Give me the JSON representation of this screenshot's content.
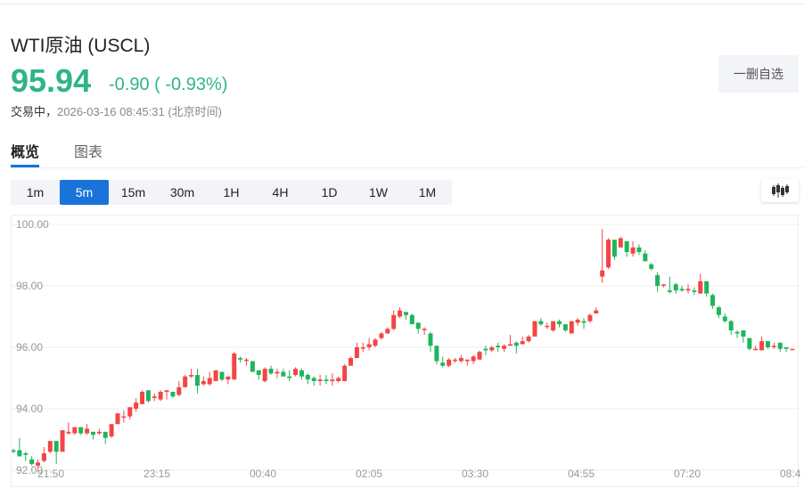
{
  "header": {
    "title": "WTI原油  (USCL)",
    "price": "95.94",
    "change": "-0.90 ( -0.93%)",
    "status_label": "交易中，",
    "timestamp": "2026-03-16 08:45:31  (北京时间)",
    "price_color": "#2fb48a"
  },
  "actions": {
    "remove_watchlist_label": "一删自选"
  },
  "tabs": [
    {
      "label": "概览",
      "active": true
    },
    {
      "label": "图表",
      "active": false
    }
  ],
  "periods": [
    {
      "label": "1m",
      "active": false
    },
    {
      "label": "5m",
      "active": true
    },
    {
      "label": "15m",
      "active": false
    },
    {
      "label": "30m",
      "active": false
    },
    {
      "label": "1H",
      "active": false
    },
    {
      "label": "4H",
      "active": false
    },
    {
      "label": "1D",
      "active": false
    },
    {
      "label": "1W",
      "active": false
    },
    {
      "label": "1M",
      "active": false
    }
  ],
  "chart_type_icon": "candlestick-icon",
  "colors": {
    "up": "#f44545",
    "down": "#1fb55c",
    "accent": "#1a73d9",
    "grid": "#eeeeee"
  },
  "chart_data": {
    "type": "candlestick",
    "title": "WTI原油 (USCL) 5m",
    "interval": "5m",
    "xlabel": "",
    "ylabel": "",
    "ylim": [
      92.0,
      100.0
    ],
    "y_ticks": [
      "100.00",
      "98.00",
      "96.00",
      "94.00",
      "92.00"
    ],
    "x_ticks": [
      "21:50",
      "23:15",
      "00:40",
      "02:05",
      "03:30",
      "04:55",
      "07:20",
      "08:4"
    ],
    "grid": true,
    "legend": null,
    "color_convention": "red = up, green = down",
    "candles": [
      [
        92.65,
        92.6,
        92.7,
        92.55
      ],
      [
        92.65,
        92.45,
        93.05,
        92.45
      ],
      [
        92.55,
        92.5,
        92.6,
        92.3
      ],
      [
        92.35,
        92.2,
        92.45,
        92.15
      ],
      [
        92.15,
        92.25,
        92.35,
        92.05
      ],
      [
        92.3,
        92.55,
        92.75,
        92.25
      ],
      [
        92.6,
        92.95,
        92.95,
        92.55
      ],
      [
        92.95,
        92.6,
        92.95,
        92.2
      ],
      [
        92.6,
        93.3,
        93.3,
        92.6
      ],
      [
        93.2,
        93.25,
        93.55,
        93.15
      ],
      [
        93.2,
        93.4,
        93.4,
        93.15
      ],
      [
        93.4,
        93.2,
        93.4,
        93.15
      ],
      [
        93.2,
        93.35,
        93.5,
        93.15
      ],
      [
        93.25,
        93.15,
        93.25,
        93.0
      ],
      [
        93.2,
        93.25,
        93.35,
        93.15
      ],
      [
        93.25,
        93.05,
        93.25,
        92.85
      ],
      [
        93.1,
        93.5,
        93.5,
        93.05
      ],
      [
        93.5,
        93.85,
        93.85,
        93.5
      ],
      [
        93.75,
        93.75,
        93.95,
        93.55
      ],
      [
        93.75,
        94.05,
        94.05,
        93.65
      ],
      [
        94.0,
        94.2,
        94.35,
        93.9
      ],
      [
        94.15,
        94.55,
        94.6,
        94.15
      ],
      [
        94.6,
        94.25,
        94.6,
        94.2
      ],
      [
        94.35,
        94.4,
        94.5,
        94.25
      ],
      [
        94.3,
        94.55,
        94.6,
        94.25
      ],
      [
        94.55,
        94.6,
        94.6,
        94.3
      ],
      [
        94.55,
        94.4,
        94.55,
        94.35
      ],
      [
        94.45,
        94.7,
        94.9,
        94.4
      ],
      [
        94.7,
        95.05,
        95.1,
        94.7
      ],
      [
        95.05,
        95.1,
        95.3,
        95.0
      ],
      [
        95.1,
        94.75,
        95.3,
        94.5
      ],
      [
        94.8,
        94.9,
        95.05,
        94.75
      ],
      [
        94.8,
        95.0,
        95.2,
        94.75
      ],
      [
        94.9,
        95.25,
        95.25,
        94.9
      ],
      [
        95.2,
        94.95,
        95.2,
        94.9
      ],
      [
        94.95,
        95.05,
        95.05,
        94.8
      ],
      [
        94.95,
        95.8,
        95.85,
        94.95
      ],
      [
        95.65,
        95.6,
        95.7,
        95.5
      ],
      [
        95.6,
        95.6,
        95.65,
        95.4
      ],
      [
        95.55,
        95.2,
        95.55,
        95.2
      ],
      [
        95.25,
        95.1,
        95.25,
        94.95
      ],
      [
        94.9,
        95.3,
        95.35,
        94.85
      ],
      [
        95.3,
        95.15,
        95.4,
        95.1
      ],
      [
        95.15,
        95.2,
        95.3,
        95.0
      ],
      [
        95.2,
        95.05,
        95.3,
        95.05
      ],
      [
        95.05,
        95.0,
        95.25,
        94.9
      ],
      [
        95.1,
        95.3,
        95.35,
        95.05
      ],
      [
        95.25,
        95.05,
        95.3,
        94.95
      ],
      [
        95.1,
        94.95,
        95.15,
        94.8
      ],
      [
        95.0,
        94.9,
        95.05,
        94.75
      ],
      [
        94.9,
        94.95,
        95.1,
        94.75
      ],
      [
        94.95,
        94.9,
        95.1,
        94.8
      ],
      [
        94.9,
        94.95,
        95.15,
        94.75
      ],
      [
        94.9,
        95.0,
        95.05,
        94.85
      ],
      [
        94.9,
        95.4,
        95.45,
        94.9
      ],
      [
        95.4,
        95.65,
        95.7,
        95.4
      ],
      [
        95.65,
        96.0,
        96.15,
        95.65
      ],
      [
        96.0,
        96.0,
        96.15,
        95.85
      ],
      [
        96.0,
        96.1,
        96.3,
        95.9
      ],
      [
        96.05,
        96.25,
        96.3,
        96.0
      ],
      [
        96.3,
        96.45,
        96.5,
        96.25
      ],
      [
        96.45,
        96.6,
        96.65,
        96.45
      ],
      [
        96.6,
        97.05,
        97.2,
        96.55
      ],
      [
        97.0,
        97.2,
        97.3,
        96.95
      ],
      [
        97.15,
        97.05,
        97.15,
        96.9
      ],
      [
        97.05,
        96.75,
        97.1,
        96.75
      ],
      [
        96.8,
        96.6,
        96.8,
        96.45
      ],
      [
        96.6,
        96.6,
        96.65,
        96.4
      ],
      [
        96.45,
        96.05,
        96.5,
        95.85
      ],
      [
        96.05,
        95.55,
        96.05,
        95.45
      ],
      [
        95.5,
        95.4,
        95.7,
        95.35
      ],
      [
        95.4,
        95.6,
        95.65,
        95.35
      ],
      [
        95.6,
        95.6,
        95.65,
        95.5
      ],
      [
        95.55,
        95.65,
        95.75,
        95.5
      ],
      [
        95.55,
        95.6,
        95.6,
        95.4
      ],
      [
        95.55,
        95.7,
        95.75,
        95.45
      ],
      [
        95.6,
        95.85,
        95.9,
        95.6
      ],
      [
        95.95,
        95.9,
        96.05,
        95.75
      ],
      [
        95.9,
        96.0,
        96.05,
        95.85
      ],
      [
        96.05,
        96.0,
        96.15,
        95.85
      ],
      [
        95.95,
        96.05,
        96.1,
        95.85
      ],
      [
        96.05,
        96.1,
        96.4,
        96.05
      ],
      [
        96.15,
        96.05,
        96.2,
        95.8
      ],
      [
        96.1,
        96.2,
        96.35,
        96.1
      ],
      [
        96.2,
        96.35,
        96.4,
        96.15
      ],
      [
        96.35,
        96.85,
        96.85,
        96.35
      ],
      [
        96.85,
        96.75,
        96.95,
        96.7
      ],
      [
        96.7,
        96.7,
        96.8,
        96.6
      ],
      [
        96.55,
        96.85,
        96.85,
        96.5
      ],
      [
        96.85,
        96.75,
        96.9,
        96.65
      ],
      [
        96.75,
        96.55,
        96.75,
        96.5
      ],
      [
        96.45,
        96.85,
        96.85,
        96.45
      ],
      [
        96.8,
        96.9,
        96.95,
        96.7
      ],
      [
        96.85,
        96.8,
        96.95,
        96.6
      ],
      [
        96.85,
        97.05,
        97.1,
        96.8
      ],
      [
        97.1,
        97.2,
        97.3,
        97.1
      ],
      [
        98.3,
        98.5,
        99.85,
        98.1
      ],
      [
        98.6,
        99.5,
        99.55,
        98.55
      ],
      [
        99.5,
        98.95,
        99.5,
        98.85
      ],
      [
        99.25,
        99.55,
        99.6,
        99.25
      ],
      [
        99.45,
        99.1,
        99.45,
        98.95
      ],
      [
        99.05,
        99.25,
        99.45,
        98.95
      ],
      [
        99.25,
        99.1,
        99.35,
        99.0
      ],
      [
        99.05,
        98.8,
        99.15,
        98.8
      ],
      [
        98.7,
        98.55,
        98.75,
        98.5
      ],
      [
        98.35,
        98.0,
        98.45,
        97.8
      ],
      [
        98.05,
        98.05,
        98.05,
        97.95
      ],
      [
        97.85,
        97.8,
        98.3,
        97.75
      ],
      [
        98.05,
        97.85,
        98.1,
        97.75
      ],
      [
        97.9,
        97.85,
        98.0,
        97.8
      ],
      [
        97.85,
        97.9,
        98.05,
        97.75
      ],
      [
        97.85,
        97.8,
        97.95,
        97.7
      ],
      [
        97.75,
        98.15,
        98.4,
        97.75
      ],
      [
        98.15,
        97.75,
        98.15,
        97.65
      ],
      [
        97.7,
        97.35,
        97.75,
        97.25
      ],
      [
        97.3,
        97.05,
        97.35,
        96.95
      ],
      [
        97.0,
        96.85,
        97.1,
        96.8
      ],
      [
        96.85,
        96.55,
        96.9,
        96.4
      ],
      [
        96.5,
        96.45,
        96.55,
        96.3
      ],
      [
        96.55,
        96.35,
        96.55,
        96.15
      ],
      [
        96.3,
        95.95,
        96.3,
        95.9
      ],
      [
        95.95,
        95.95,
        96.05,
        95.9
      ],
      [
        95.9,
        96.2,
        96.35,
        95.9
      ],
      [
        96.2,
        96.0,
        96.2,
        95.95
      ],
      [
        96.05,
        96.05,
        96.15,
        95.95
      ],
      [
        96.15,
        95.95,
        96.15,
        95.85
      ],
      [
        96.0,
        95.95,
        96.0,
        95.85
      ],
      [
        95.95,
        95.95,
        95.95,
        95.95
      ]
    ]
  }
}
